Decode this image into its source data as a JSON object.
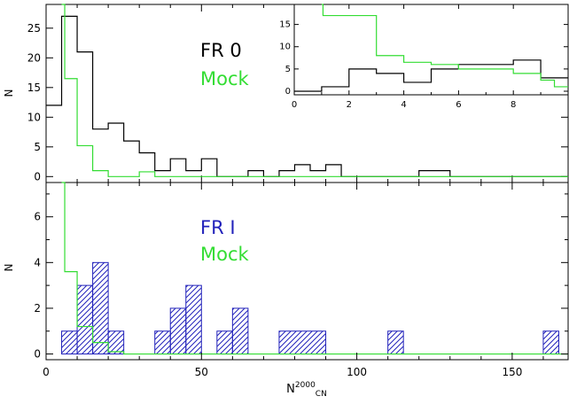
{
  "chart_data": [
    {
      "panel": "top",
      "type": "histogram-step",
      "ylabel": "N",
      "xlim": [
        0,
        168
      ],
      "ylim": [
        -1,
        29
      ],
      "yticks": [
        0,
        5,
        10,
        15,
        20,
        25
      ],
      "xticks": [
        0,
        50,
        100,
        150
      ],
      "show_xtick_labels": false,
      "legend": [
        "FR 0",
        "Mock"
      ],
      "legend_colors": [
        "#000000",
        "#33dd33"
      ],
      "series": [
        {
          "name": "FR 0",
          "color": "#000000",
          "steps": [
            [
              0,
              12
            ],
            [
              5,
              27
            ],
            [
              10,
              21
            ],
            [
              15,
              8
            ],
            [
              20,
              9
            ],
            [
              25,
              6
            ],
            [
              30,
              4
            ],
            [
              35,
              1
            ],
            [
              40,
              3
            ],
            [
              45,
              1
            ],
            [
              50,
              3
            ],
            [
              55,
              0
            ],
            [
              65,
              1
            ],
            [
              70,
              0
            ],
            [
              75,
              1
            ],
            [
              80,
              2
            ],
            [
              85,
              1
            ],
            [
              90,
              2
            ],
            [
              95,
              0
            ],
            [
              120,
              1
            ],
            [
              130,
              0
            ],
            [
              168,
              0
            ]
          ]
        },
        {
          "name": "Mock",
          "color": "#33dd33",
          "steps": [
            [
              5,
              29
            ],
            [
              6,
              16.5
            ],
            [
              10,
              5.2
            ],
            [
              15,
              1
            ],
            [
              20,
              0
            ],
            [
              30,
              0.8
            ],
            [
              35,
              0
            ],
            [
              168,
              0
            ]
          ]
        }
      ],
      "inset": {
        "xlim": [
          0,
          10
        ],
        "ylim": [
          -0.8,
          19.5
        ],
        "xticks": [
          0,
          2,
          4,
          6,
          8
        ],
        "xtick_labels": [
          "0",
          "2",
          "4",
          "6",
          "8"
        ],
        "yticks": [
          0,
          5,
          10,
          15
        ],
        "ytick_labels": [
          "0",
          "5",
          "10",
          "15"
        ],
        "series": [
          {
            "name": "FR 0",
            "color": "#000000",
            "steps": [
              [
                0,
                0
              ],
              [
                1,
                1
              ],
              [
                2,
                5
              ],
              [
                3,
                4
              ],
              [
                4,
                2
              ],
              [
                5,
                5
              ],
              [
                6,
                6
              ],
              [
                7,
                6
              ],
              [
                8,
                7
              ],
              [
                9,
                3
              ],
              [
                10,
                3
              ]
            ]
          },
          {
            "name": "Mock",
            "color": "#33dd33",
            "steps": [
              [
                1,
                19.5
              ],
              [
                1.05,
                17
              ],
              [
                3,
                8
              ],
              [
                4,
                6.5
              ],
              [
                5,
                6
              ],
              [
                6,
                5
              ],
              [
                8,
                4
              ],
              [
                9,
                2.5
              ],
              [
                9.5,
                1
              ],
              [
                10,
                1
              ]
            ]
          }
        ]
      }
    },
    {
      "panel": "bottom",
      "type": "histogram-step",
      "xlabel": "N",
      "xlabel_superscript": "2000",
      "xlabel_subscript": "CN",
      "ylabel": "N",
      "xlim": [
        0,
        168
      ],
      "ylim": [
        -0.25,
        7.5
      ],
      "xticks": [
        0,
        50,
        100,
        150
      ],
      "xtick_labels": [
        "0",
        "50",
        "100",
        "150"
      ],
      "yticks": [
        0,
        2,
        4,
        6
      ],
      "ytick_labels": [
        "0",
        "2",
        "4",
        "6"
      ],
      "legend": [
        "FR I",
        "Mock"
      ],
      "legend_colors": [
        "#2222bb",
        "#33dd33"
      ],
      "series": [
        {
          "name": "FR I",
          "color": "#2222bb",
          "hatched": true,
          "bins": [
            [
              5,
              10,
              1
            ],
            [
              10,
              15,
              3
            ],
            [
              15,
              20,
              4
            ],
            [
              20,
              25,
              1
            ],
            [
              35,
              40,
              1
            ],
            [
              40,
              45,
              2
            ],
            [
              45,
              50,
              3
            ],
            [
              55,
              60,
              1
            ],
            [
              60,
              65,
              2
            ],
            [
              75,
              90,
              1
            ],
            [
              110,
              115,
              1
            ],
            [
              160,
              165,
              1
            ]
          ]
        },
        {
          "name": "Mock",
          "color": "#33dd33",
          "steps": [
            [
              5,
              7.5
            ],
            [
              6,
              3.6
            ],
            [
              10,
              1.2
            ],
            [
              15,
              0.5
            ],
            [
              20,
              0.1
            ],
            [
              25,
              0
            ],
            [
              168,
              0
            ]
          ]
        }
      ]
    }
  ]
}
